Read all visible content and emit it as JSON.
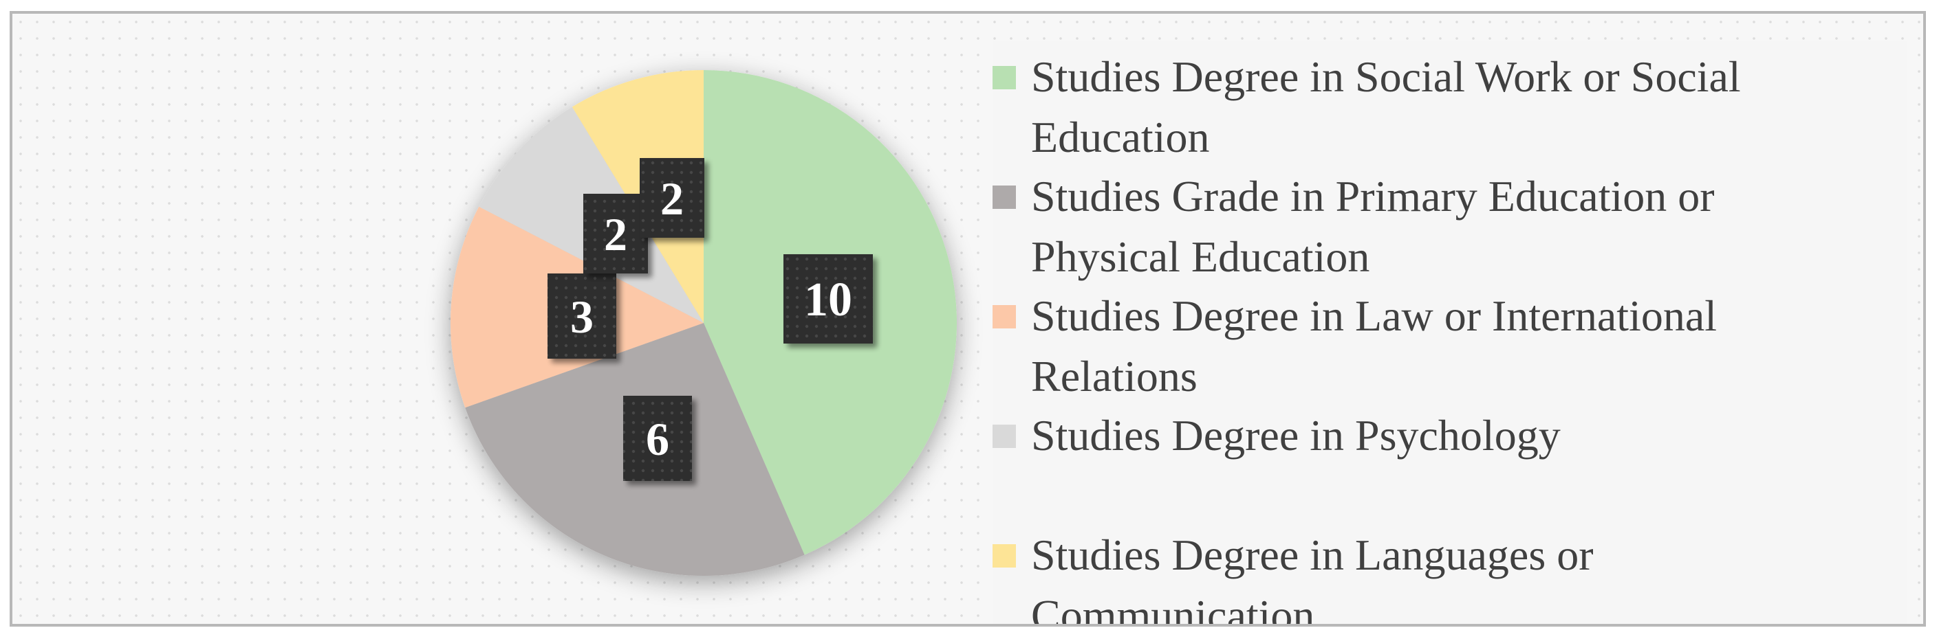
{
  "chart_data": {
    "type": "pie",
    "categories": [
      "Studies Degree in Social Work or Social Education",
      "Studies Grade in Primary Education or Physical Education",
      "Studies Degree in Law or International Relations",
      "Studies Degree in Psychology",
      "Studies Degree in Languages or Communication"
    ],
    "values": [
      10,
      6,
      3,
      2,
      2
    ],
    "data_labels": [
      "10",
      "6",
      "3",
      "2",
      "2"
    ],
    "colors": [
      "#b8e0b2",
      "#aeaaaa",
      "#fcc8a8",
      "#d9d9d9",
      "#fde496"
    ],
    "legend_position": "right",
    "legend": {
      "items": [
        {
          "line1": "Studies Degree in Social Work or Social",
          "line2": "Education"
        },
        {
          "line1": "Studies Grade in Primary Education or",
          "line2": "Physical Education"
        },
        {
          "line1": "Studies Degree in Law or International",
          "line2": "Relations"
        },
        {
          "line1": "Studies Degree in Psychology",
          "line2": ""
        },
        {
          "line1": "Studies Degree in Languages or",
          "line2": "Communication"
        }
      ]
    }
  }
}
